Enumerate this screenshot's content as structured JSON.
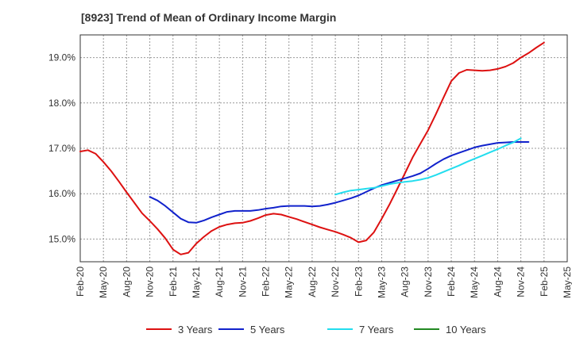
{
  "chart_data": {
    "type": "line",
    "title": "[8923]  Trend of Mean of Ordinary Income Margin",
    "xlabel": "",
    "ylabel": "",
    "ylim": [
      14.5,
      19.5
    ],
    "yticks": [
      15.0,
      16.0,
      17.0,
      18.0,
      19.0
    ],
    "ytick_labels": [
      "15.0%",
      "16.0%",
      "17.0%",
      "18.0%",
      "19.0%"
    ],
    "xtick_labels": [
      "Feb-20",
      "May-20",
      "Aug-20",
      "Nov-20",
      "Feb-21",
      "May-21",
      "Aug-21",
      "Nov-21",
      "Feb-22",
      "May-22",
      "Aug-22",
      "Nov-22",
      "Feb-23",
      "May-23",
      "Aug-23",
      "Nov-23",
      "Feb-24",
      "May-24",
      "Aug-24",
      "Nov-24",
      "Feb-25",
      "May-25"
    ],
    "grid": true,
    "legend_position": "bottom",
    "series": [
      {
        "name": "3 Years",
        "color": "#dd1111",
        "start_index": 0,
        "values": [
          16.93,
          16.96,
          16.88,
          16.7,
          16.5,
          16.27,
          16.03,
          15.8,
          15.57,
          15.4,
          15.22,
          15.02,
          14.77,
          14.66,
          14.7,
          14.9,
          15.05,
          15.18,
          15.27,
          15.32,
          15.35,
          15.36,
          15.4,
          15.46,
          15.53,
          15.56,
          15.54,
          15.49,
          15.44,
          15.38,
          15.32,
          15.26,
          15.21,
          15.16,
          15.1,
          15.03,
          14.93,
          14.97,
          15.15,
          15.45,
          15.76,
          16.1,
          16.45,
          16.8,
          17.1,
          17.4,
          17.75,
          18.12,
          18.48,
          18.66,
          18.73,
          18.72,
          18.71,
          18.72,
          18.75,
          18.8,
          18.88,
          19.0,
          19.1,
          19.22,
          19.33
        ]
      },
      {
        "name": "5 Years",
        "color": "#1122cc",
        "start_index": 9,
        "values": [
          15.93,
          15.85,
          15.73,
          15.59,
          15.45,
          15.37,
          15.36,
          15.41,
          15.48,
          15.54,
          15.6,
          15.62,
          15.62,
          15.62,
          15.64,
          15.67,
          15.69,
          15.72,
          15.73,
          15.73,
          15.73,
          15.72,
          15.73,
          15.76,
          15.8,
          15.85,
          15.9,
          15.96,
          16.04,
          16.12,
          16.19,
          16.24,
          16.29,
          16.34,
          16.39,
          16.45,
          16.55,
          16.66,
          16.76,
          16.84,
          16.9,
          16.96,
          17.02,
          17.06,
          17.09,
          17.12,
          17.13,
          17.14,
          17.14,
          17.14
        ]
      },
      {
        "name": "7 Years",
        "color": "#22ddee",
        "start_index": 33,
        "values": [
          15.98,
          16.03,
          16.07,
          16.09,
          16.11,
          16.13,
          16.17,
          16.21,
          16.24,
          16.26,
          16.28,
          16.31,
          16.35,
          16.41,
          16.48,
          16.55,
          16.62,
          16.7,
          16.77,
          16.84,
          16.91,
          16.98,
          17.06,
          17.13,
          17.22
        ]
      },
      {
        "name": "10 Years",
        "color": "#228822",
        "start_index": 0,
        "values": []
      }
    ]
  }
}
